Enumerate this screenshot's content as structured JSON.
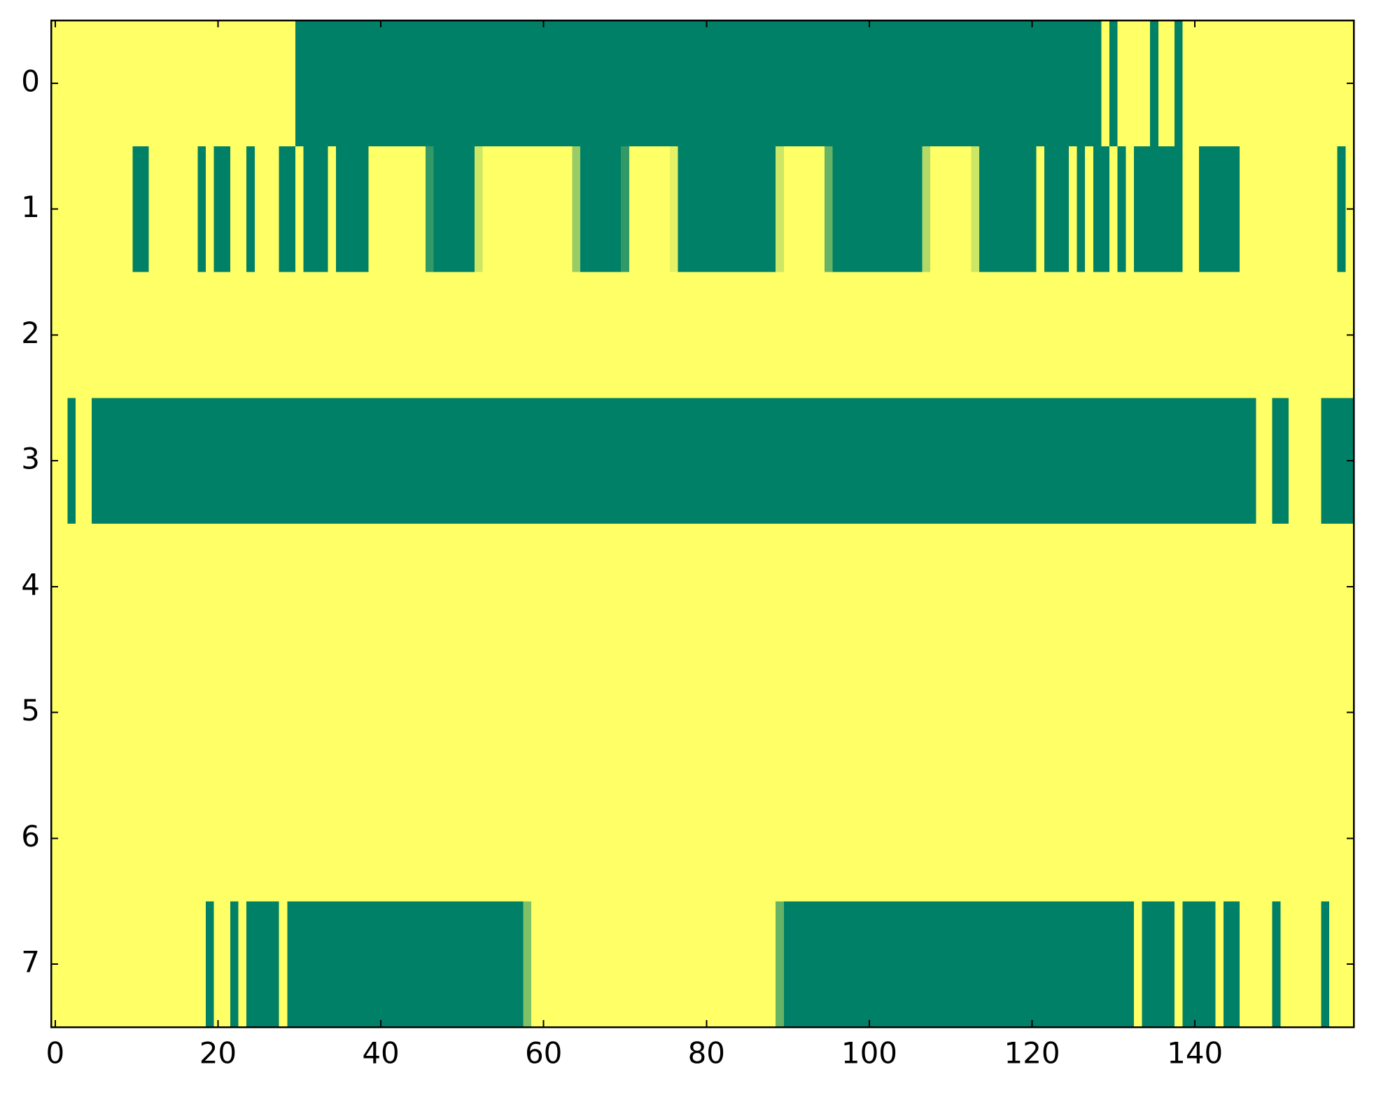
{
  "chart_data": {
    "type": "heatmap",
    "xlim": [
      -0.5,
      159.5
    ],
    "ylim": [
      -0.5,
      7.5
    ],
    "xticks": [
      0,
      20,
      40,
      60,
      80,
      100,
      120,
      140
    ],
    "yticks": [
      0,
      1,
      2,
      3,
      4,
      5,
      6,
      7
    ],
    "zlim": [
      0,
      1
    ],
    "colors": [
      "#008066",
      "#ffff66"
    ],
    "z": [
      [
        1,
        1,
        1,
        1,
        1,
        1,
        1,
        1,
        1,
        1,
        1,
        1,
        1,
        1,
        1,
        1,
        1,
        1,
        1,
        1,
        1,
        1,
        1,
        1,
        1,
        1,
        1,
        1,
        1,
        1,
        0,
        0,
        0,
        0,
        0,
        0,
        0,
        0,
        0,
        0,
        0,
        0,
        0,
        0,
        0,
        0,
        0,
        0,
        0,
        0,
        0,
        0,
        0,
        0,
        0,
        0,
        0,
        0,
        0,
        0,
        0,
        0,
        0,
        0,
        0,
        0,
        0,
        0,
        0,
        0,
        0,
        0,
        0,
        0,
        0,
        0,
        0,
        0,
        0,
        0,
        0,
        0,
        0,
        0,
        0,
        0,
        0,
        0,
        0,
        0,
        0,
        0,
        0,
        0,
        0,
        0,
        0,
        0,
        0,
        0,
        0,
        0,
        0,
        0,
        0,
        0,
        0,
        0,
        0,
        0,
        0,
        0,
        0,
        0,
        0,
        0,
        0,
        0,
        0,
        0,
        0,
        0,
        0,
        0,
        0,
        0,
        0,
        0,
        0,
        1,
        0,
        1,
        1,
        1,
        1,
        0,
        1,
        1,
        0,
        1,
        1,
        1,
        1,
        1,
        1,
        1,
        1,
        1,
        1,
        1,
        1,
        1,
        1,
        1,
        1,
        1,
        1,
        1,
        1,
        1
      ],
      [
        1,
        1,
        1,
        1,
        1,
        1,
        1,
        1,
        1,
        1,
        0,
        0,
        1,
        1,
        1,
        1,
        1,
        1,
        0,
        1,
        0,
        0,
        1,
        1,
        0,
        1,
        1,
        1,
        0,
        0,
        1,
        0,
        0,
        0,
        1,
        0,
        0,
        0,
        0,
        1,
        1,
        1,
        1,
        1,
        1,
        1,
        0.2,
        0,
        0,
        0,
        0,
        0,
        0.8,
        1,
        1,
        1,
        1,
        1,
        1,
        1,
        1,
        1,
        1,
        1,
        0.6,
        0,
        0,
        0,
        0,
        0,
        0.2,
        1,
        1,
        1,
        1,
        1,
        0.9,
        0,
        0,
        0,
        0,
        0,
        0,
        0,
        0,
        0,
        0,
        0,
        0,
        0.8,
        1,
        1,
        1,
        1,
        1,
        0.4,
        0,
        0,
        0,
        0,
        0,
        0,
        0,
        0,
        0,
        0,
        0,
        0.7,
        1,
        1,
        1,
        1,
        1,
        0.8,
        0,
        0,
        0,
        0,
        0,
        0,
        0,
        1,
        0,
        0,
        0,
        1,
        0,
        1,
        0,
        0,
        1,
        0,
        1,
        0,
        0,
        0,
        0,
        0,
        0,
        1,
        1,
        0,
        0,
        0,
        0,
        0,
        1,
        1,
        1,
        1,
        1,
        1,
        1,
        1,
        1,
        1,
        1,
        1,
        0,
        1
      ],
      [
        1,
        1,
        1,
        1,
        1,
        1,
        1,
        1,
        1,
        1,
        1,
        1,
        1,
        1,
        1,
        1,
        1,
        1,
        1,
        1,
        1,
        1,
        1,
        1,
        1,
        1,
        1,
        1,
        1,
        1,
        1,
        1,
        1,
        1,
        1,
        1,
        1,
        1,
        1,
        1,
        1,
        1,
        1,
        1,
        1,
        1,
        1,
        1,
        1,
        1,
        1,
        1,
        1,
        1,
        1,
        1,
        1,
        1,
        1,
        1,
        1,
        1,
        1,
        1,
        1,
        1,
        1,
        1,
        1,
        1,
        1,
        1,
        1,
        1,
        1,
        1,
        1,
        1,
        1,
        1,
        1,
        1,
        1,
        1,
        1,
        1,
        1,
        1,
        1,
        1,
        1,
        1,
        1,
        1,
        1,
        1,
        1,
        1,
        1,
        1,
        1,
        1,
        1,
        1,
        1,
        1,
        1,
        1,
        1,
        1,
        1,
        1,
        1,
        1,
        1,
        1,
        1,
        1,
        1,
        1,
        1,
        1,
        1,
        1,
        1,
        1,
        1,
        1,
        1,
        1,
        1,
        1,
        1,
        1,
        1,
        1,
        1,
        1,
        1,
        1,
        1,
        1,
        1,
        1,
        1,
        1,
        1,
        1,
        1,
        1,
        1,
        1,
        1,
        1,
        1,
        1,
        1,
        1,
        1,
        1
      ],
      [
        1,
        1,
        0,
        1,
        1,
        0,
        0,
        0,
        0,
        0,
        0,
        0,
        0,
        0,
        0,
        0,
        0,
        0,
        0,
        0,
        0,
        0,
        0,
        0,
        0,
        0,
        0,
        0,
        0,
        0,
        0,
        0,
        0,
        0,
        0,
        0,
        0,
        0,
        0,
        0,
        0,
        0,
        0,
        0,
        0,
        0,
        0,
        0,
        0,
        0,
        0,
        0,
        0,
        0,
        0,
        0,
        0,
        0,
        0,
        0,
        0,
        0,
        0,
        0,
        0,
        0,
        0,
        0,
        0,
        0,
        0,
        0,
        0,
        0,
        0,
        0,
        0,
        0,
        0,
        0,
        0,
        0,
        0,
        0,
        0,
        0,
        0,
        0,
        0,
        0,
        0,
        0,
        0,
        0,
        0,
        0,
        0,
        0,
        0,
        0,
        0,
        0,
        0,
        0,
        0,
        0,
        0,
        0,
        0,
        0,
        0,
        0,
        0,
        0,
        0,
        0,
        0,
        0,
        0,
        0,
        0,
        0,
        0,
        0,
        0,
        0,
        0,
        0,
        0,
        0,
        0,
        0,
        0,
        0,
        0,
        0,
        0,
        0,
        0,
        0,
        0,
        0,
        0,
        0,
        0,
        0,
        0,
        0,
        1,
        1,
        0,
        0,
        1,
        1,
        1,
        1,
        0,
        0,
        0,
        0
      ],
      [
        1,
        1,
        1,
        1,
        1,
        1,
        1,
        1,
        1,
        1,
        1,
        1,
        1,
        1,
        1,
        1,
        1,
        1,
        1,
        1,
        1,
        1,
        1,
        1,
        1,
        1,
        1,
        1,
        1,
        1,
        1,
        1,
        1,
        1,
        1,
        1,
        1,
        1,
        1,
        1,
        1,
        1,
        1,
        1,
        1,
        1,
        1,
        1,
        1,
        1,
        1,
        1,
        1,
        1,
        1,
        1,
        1,
        1,
        1,
        1,
        1,
        1,
        1,
        1,
        1,
        1,
        1,
        1,
        1,
        1,
        1,
        1,
        1,
        1,
        1,
        1,
        1,
        1,
        1,
        1,
        1,
        1,
        1,
        1,
        1,
        1,
        1,
        1,
        1,
        1,
        1,
        1,
        1,
        1,
        1,
        1,
        1,
        1,
        1,
        1,
        1,
        1,
        1,
        1,
        1,
        1,
        1,
        1,
        1,
        1,
        1,
        1,
        1,
        1,
        1,
        1,
        1,
        1,
        1,
        1,
        1,
        1,
        1,
        1,
        1,
        1,
        1,
        1,
        1,
        1,
        1,
        1,
        1,
        1,
        1,
        1,
        1,
        1,
        1,
        1,
        1,
        1,
        1,
        1,
        1,
        1,
        1,
        1,
        1,
        1,
        1,
        1,
        1,
        1,
        1,
        1,
        1,
        1,
        1,
        1
      ],
      [
        1,
        1,
        1,
        1,
        1,
        1,
        1,
        1,
        1,
        1,
        1,
        1,
        1,
        1,
        1,
        1,
        1,
        1,
        1,
        1,
        1,
        1,
        1,
        1,
        1,
        1,
        1,
        1,
        1,
        1,
        1,
        1,
        1,
        1,
        1,
        1,
        1,
        1,
        1,
        1,
        1,
        1,
        1,
        1,
        1,
        1,
        1,
        1,
        1,
        1,
        1,
        1,
        1,
        1,
        1,
        1,
        1,
        1,
        1,
        1,
        1,
        1,
        1,
        1,
        1,
        1,
        1,
        1,
        1,
        1,
        1,
        1,
        1,
        1,
        1,
        1,
        1,
        1,
        1,
        1,
        1,
        1,
        1,
        1,
        1,
        1,
        1,
        1,
        1,
        1,
        1,
        1,
        1,
        1,
        1,
        1,
        1,
        1,
        1,
        1,
        1,
        1,
        1,
        1,
        1,
        1,
        1,
        1,
        1,
        1,
        1,
        1,
        1,
        1,
        1,
        1,
        1,
        1,
        1,
        1,
        1,
        1,
        1,
        1,
        1,
        1,
        1,
        1,
        1,
        1,
        1,
        1,
        1,
        1,
        1,
        1,
        1,
        1,
        1,
        1,
        1,
        1,
        1,
        1,
        1,
        1,
        1,
        1,
        1,
        1,
        1,
        1,
        1,
        1,
        1,
        1,
        1,
        1,
        1,
        1
      ],
      [
        1,
        1,
        1,
        1,
        1,
        1,
        1,
        1,
        1,
        1,
        1,
        1,
        1,
        1,
        1,
        1,
        1,
        1,
        1,
        1,
        1,
        1,
        1,
        1,
        1,
        1,
        1,
        1,
        1,
        1,
        1,
        1,
        1,
        1,
        1,
        1,
        1,
        1,
        1,
        1,
        1,
        1,
        1,
        1,
        1,
        1,
        1,
        1,
        1,
        1,
        1,
        1,
        1,
        1,
        1,
        1,
        1,
        1,
        1,
        1,
        1,
        1,
        1,
        1,
        1,
        1,
        1,
        1,
        1,
        1,
        1,
        1,
        1,
        1,
        1,
        1,
        1,
        1,
        1,
        1,
        1,
        1,
        1,
        1,
        1,
        1,
        1,
        1,
        1,
        1,
        1,
        1,
        1,
        1,
        1,
        1,
        1,
        1,
        1,
        1,
        1,
        1,
        1,
        1,
        1,
        1,
        1,
        1,
        1,
        1,
        1,
        1,
        1,
        1,
        1,
        1,
        1,
        1,
        1,
        1,
        1,
        1,
        1,
        1,
        1,
        1,
        1,
        1,
        1,
        1,
        1,
        1,
        1,
        1,
        1,
        1,
        1,
        1,
        1,
        1,
        1,
        1,
        1,
        1,
        1,
        1,
        1,
        1,
        1,
        1,
        1,
        1,
        1,
        1,
        1,
        1,
        1,
        1,
        1,
        1
      ],
      [
        1,
        1,
        1,
        1,
        1,
        1,
        1,
        1,
        1,
        1,
        1,
        1,
        1,
        1,
        1,
        1,
        1,
        1,
        1,
        0,
        1,
        1,
        0,
        1,
        0,
        0,
        0,
        0,
        1,
        0,
        0,
        0,
        0,
        0,
        0,
        0,
        0,
        0,
        0,
        0,
        0,
        0,
        0,
        0,
        0,
        0,
        0,
        0,
        0,
        0,
        0,
        0,
        0,
        0,
        0,
        0,
        0,
        0,
        0.5,
        1,
        1,
        1,
        1,
        1,
        1,
        1,
        1,
        1,
        1,
        1,
        1,
        1,
        1,
        1,
        1,
        1,
        1,
        1,
        1,
        1,
        1,
        1,
        1,
        1,
        1,
        1,
        1,
        1,
        1,
        0.4,
        0,
        0,
        0,
        0,
        0,
        0,
        0,
        0,
        0,
        0,
        0,
        0,
        0,
        0,
        0,
        0,
        0,
        0,
        0,
        0,
        0,
        0,
        0,
        0,
        0,
        0,
        0,
        0,
        0,
        0,
        0,
        0,
        0,
        0,
        0,
        0,
        0,
        0,
        0,
        0,
        0,
        0,
        0,
        1,
        0,
        0,
        0,
        0,
        1,
        0,
        0,
        0,
        0,
        1,
        0,
        0,
        1,
        1,
        1,
        1,
        0,
        1,
        1,
        1,
        1,
        1,
        0,
        1,
        1,
        1
      ]
    ]
  }
}
